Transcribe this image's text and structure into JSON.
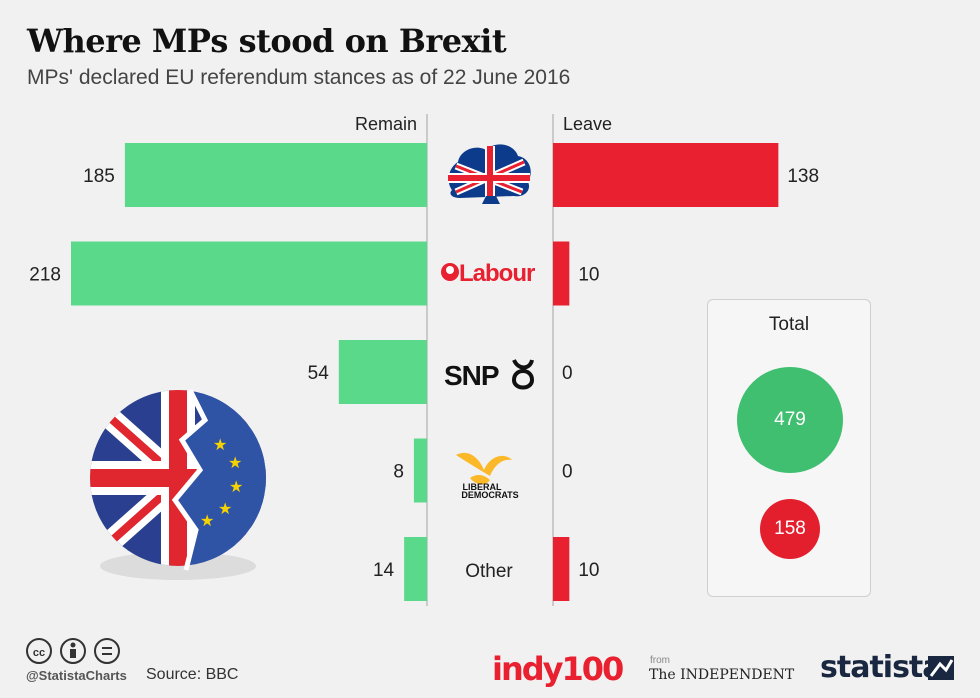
{
  "title": "Where MPs stood on Brexit",
  "subtitle": "MPs' declared EU referendum stances as of 22 June 2016",
  "colors": {
    "remain": "#5ad98b",
    "leave": "#e8202f",
    "remain_total": "#3fbf6f",
    "leave_total": "#e41f2d"
  },
  "chart_data": {
    "type": "bar",
    "orientation": "horizontal-diverging",
    "categories": [
      "Conservative",
      "Labour",
      "SNP",
      "Liberal Democrats",
      "Other"
    ],
    "category_labels": {
      "other": "Other",
      "labour": "Labour",
      "snp": "SNP",
      "libdem_line1": "LIBERAL",
      "libdem_line2": "DEMOCRATS"
    },
    "series": [
      {
        "name": "Remain",
        "values": [
          185,
          218,
          54,
          8,
          14
        ]
      },
      {
        "name": "Leave",
        "values": [
          138,
          10,
          0,
          0,
          10
        ]
      }
    ],
    "value_labels": {
      "remain": [
        "185",
        "218",
        "54",
        "8",
        "14"
      ],
      "leave": [
        "138",
        "10",
        "0",
        "0",
        "10"
      ]
    }
  },
  "totals": {
    "label": "Total",
    "remain": "479",
    "leave": "158"
  },
  "footer": {
    "handle": "@StatistaCharts",
    "source": "Source: BBC",
    "brand1": "indy100",
    "from": "from",
    "brand2": "The INDEPENDENT",
    "brand3": "statista"
  }
}
